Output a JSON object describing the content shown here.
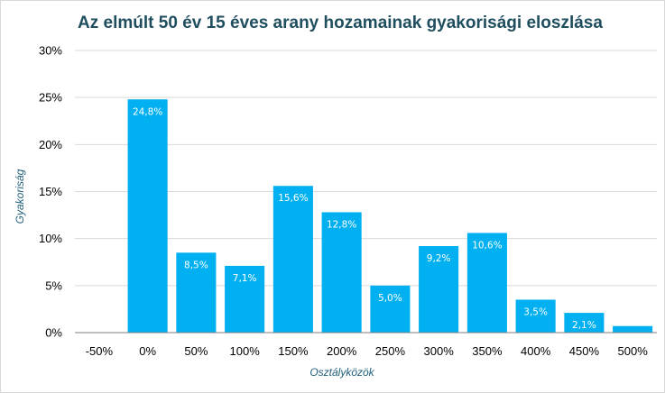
{
  "chart_data": {
    "type": "bar",
    "title": "Az elmúlt 50 év 15 éves arany hozamainak gyakorisági eloszlása",
    "xlabel": "Osztályközök",
    "ylabel": "Gyakoriság",
    "categories": [
      "-50%",
      "0%",
      "50%",
      "100%",
      "150%",
      "200%",
      "250%",
      "300%",
      "350%",
      "400%",
      "450%",
      "500%"
    ],
    "values": [
      0,
      24.8,
      8.5,
      7.1,
      15.6,
      12.8,
      5.0,
      9.2,
      10.6,
      3.5,
      2.1,
      0.7
    ],
    "data_labels": [
      "",
      "24,8%",
      "8,5%",
      "7,1%",
      "15,6%",
      "12,8%",
      "5,0%",
      "9,2%",
      "10,6%",
      "3,5%",
      "2,1%",
      ""
    ],
    "yticks": [
      0,
      5,
      10,
      15,
      20,
      25,
      30
    ],
    "ytick_labels": [
      "0%",
      "5%",
      "10%",
      "15%",
      "20%",
      "25%",
      "30%"
    ],
    "ylim": [
      0,
      30
    ],
    "grid": true,
    "bar_color": "#00b0f0"
  }
}
